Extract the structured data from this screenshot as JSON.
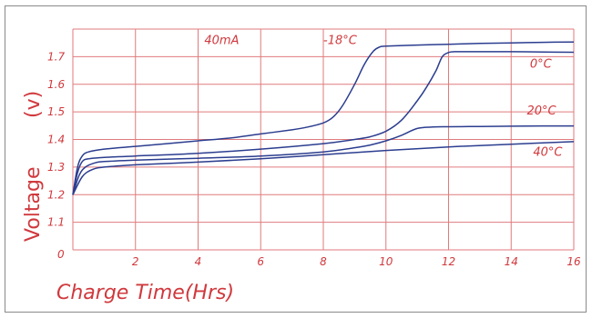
{
  "chart_data": {
    "type": "line",
    "title": "",
    "xlabel": "Charge Time(Hrs)",
    "ylabel": "Voltage",
    "ylabel_unit": "(v)",
    "xlim": [
      0,
      16
    ],
    "ylim": [
      1.0,
      1.8
    ],
    "x_ticks": [
      "2",
      "4",
      "6",
      "8",
      "10",
      "12",
      "14",
      "16"
    ],
    "x_origin_label": "0",
    "y_ticks": [
      {
        "value": 1.1,
        "label": "1.1"
      },
      {
        "value": 1.2,
        "label": "1.2"
      },
      {
        "value": 1.3,
        "label": "1.3"
      },
      {
        "value": 1.4,
        "label": "1.4"
      },
      {
        "value": 1.5,
        "label": "1.5"
      },
      {
        "value": 1.6,
        "label": "1.6"
      },
      {
        "value": 1.7,
        "label": "1.7"
      }
    ],
    "grid": true,
    "annotations": [
      {
        "text": "40mA",
        "x": 4.2,
        "y": 1.745
      },
      {
        "text": "-18°C",
        "x": 8.0,
        "y": 1.745
      },
      {
        "text": "0°C",
        "x": 14.6,
        "y": 1.66
      },
      {
        "text": "20°C",
        "x": 14.5,
        "y": 1.49
      },
      {
        "text": "40°C",
        "x": 14.7,
        "y": 1.34
      }
    ],
    "series": [
      {
        "name": "-18°C",
        "x": [
          0,
          0.15,
          0.3,
          0.5,
          1,
          2,
          3,
          4,
          5,
          6,
          7,
          7.5,
          8,
          8.3,
          8.6,
          9,
          9.3,
          9.6,
          9.8,
          10,
          11,
          12,
          13,
          14,
          15,
          16
        ],
        "y": [
          1.2,
          1.3,
          1.34,
          1.355,
          1.365,
          1.375,
          1.385,
          1.395,
          1.405,
          1.42,
          1.435,
          1.445,
          1.46,
          1.48,
          1.52,
          1.6,
          1.67,
          1.72,
          1.735,
          1.738,
          1.742,
          1.745,
          1.748,
          1.75,
          1.752,
          1.753
        ]
      },
      {
        "name": "0°C",
        "x": [
          0,
          0.15,
          0.3,
          0.5,
          1,
          2,
          4,
          6,
          8,
          9,
          9.5,
          10,
          10.5,
          11,
          11.3,
          11.6,
          11.8,
          12,
          12.2,
          13,
          14,
          15,
          16
        ],
        "y": [
          1.2,
          1.28,
          1.32,
          1.33,
          1.335,
          1.34,
          1.35,
          1.365,
          1.385,
          1.4,
          1.41,
          1.43,
          1.47,
          1.54,
          1.59,
          1.65,
          1.7,
          1.715,
          1.718,
          1.718,
          1.718,
          1.717,
          1.716
        ]
      },
      {
        "name": "20°C",
        "x": [
          0,
          0.2,
          0.4,
          0.7,
          1,
          2,
          4,
          6,
          8,
          9,
          9.5,
          10,
          10.5,
          11,
          11.5,
          12,
          13,
          14,
          15,
          16
        ],
        "y": [
          1.2,
          1.27,
          1.3,
          1.315,
          1.32,
          1.325,
          1.332,
          1.34,
          1.355,
          1.37,
          1.38,
          1.395,
          1.415,
          1.44,
          1.445,
          1.446,
          1.447,
          1.448,
          1.449,
          1.449
        ]
      },
      {
        "name": "40°C",
        "x": [
          0,
          0.3,
          0.6,
          1,
          2,
          4,
          6,
          8,
          10,
          12,
          14,
          16
        ],
        "y": [
          1.2,
          1.265,
          1.29,
          1.3,
          1.308,
          1.318,
          1.33,
          1.345,
          1.36,
          1.373,
          1.383,
          1.392
        ]
      }
    ]
  }
}
